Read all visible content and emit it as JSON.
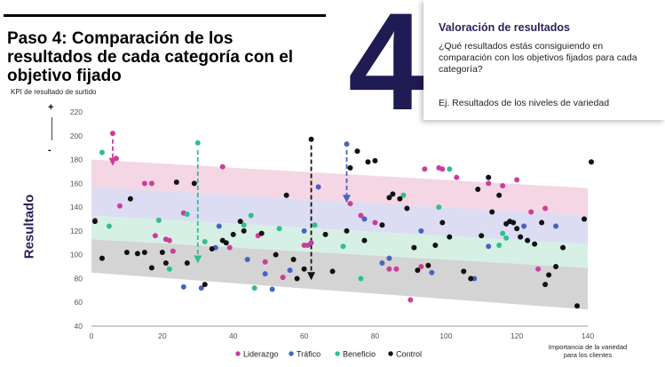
{
  "header": {
    "title_lines": [
      "Paso 4: Comparación de los",
      "resultados de cada categoría con el",
      "objetivo fijado"
    ],
    "step_number": "4"
  },
  "info_box": {
    "title": "Valoración de resultados",
    "question": "¿Qué resultados estás consiguiendo en comparación con los objetivos fijados para cada categoría?",
    "example": "Ej. Resultados de los niveles de variedad"
  },
  "axis_hints": {
    "kpi_label": "KPI de resultado de surtido",
    "plus": "+",
    "minus": "-",
    "y_title": "Resultado",
    "x_title": "Importancia de la variedad para los clientes"
  },
  "colors": {
    "Liderazgo": "#cc3d9b",
    "Tráfico": "#4763c4",
    "Beneficio": "#2fbf8c",
    "Control": "#111111",
    "band_liderazgo": "#f5d6e4",
    "band_trafico": "#dcdcf2",
    "band_beneficio": "#d6f0e6",
    "band_control": "#d4d4d4",
    "title_dark": "#1f1c54"
  },
  "chart_data": {
    "type": "scatter",
    "xlim": [
      0,
      140
    ],
    "ylim": [
      40,
      220
    ],
    "xticks": [
      0,
      20,
      40,
      60,
      80,
      100,
      120,
      140
    ],
    "yticks": [
      40,
      60,
      80,
      100,
      120,
      140,
      160,
      180,
      200,
      220
    ],
    "grid": false,
    "legend_position": "bottom",
    "legend": [
      "Liderazgo",
      "Tráfico",
      "Beneficio",
      "Control"
    ],
    "bands": [
      {
        "name": "Liderazgo",
        "left": [
          157,
          180
        ],
        "right": [
          133,
          156
        ]
      },
      {
        "name": "Tráfico",
        "left": [
          133,
          157
        ],
        "right": [
          109,
          133
        ]
      },
      {
        "name": "Beneficio",
        "left": [
          113,
          133
        ],
        "right": [
          89,
          109
        ]
      },
      {
        "name": "Control",
        "left": [
          85,
          113
        ],
        "right": [
          54,
          89
        ]
      }
    ],
    "arrows": [
      {
        "series": "Liderazgo",
        "x": 6,
        "y_from": 197,
        "y_to": 176
      },
      {
        "series": "Beneficio",
        "x": 30,
        "y_from": 188,
        "y_to": 94
      },
      {
        "series": "Control",
        "x": 62,
        "y_from": 192,
        "y_to": 80
      },
      {
        "series": "Tráfico",
        "x": 72,
        "y_from": 188,
        "y_to": 145
      }
    ],
    "series": [
      {
        "name": "Liderazgo",
        "points": [
          [
            1,
            129
          ],
          [
            6,
            202
          ],
          [
            7,
            181
          ],
          [
            8,
            141
          ],
          [
            15,
            160
          ],
          [
            17,
            160
          ],
          [
            18,
            116
          ],
          [
            21,
            113
          ],
          [
            22,
            112
          ],
          [
            23,
            103
          ],
          [
            26,
            135
          ],
          [
            37,
            174
          ],
          [
            39,
            106
          ],
          [
            47,
            116
          ],
          [
            49,
            94
          ],
          [
            54,
            81
          ],
          [
            60,
            108
          ],
          [
            61,
            108
          ],
          [
            62,
            110
          ],
          [
            73,
            143
          ],
          [
            76,
            133
          ],
          [
            80,
            127
          ],
          [
            84,
            88
          ],
          [
            86,
            88
          ],
          [
            90,
            62
          ],
          [
            93,
            90
          ],
          [
            94,
            172
          ],
          [
            98,
            173
          ],
          [
            99,
            172
          ],
          [
            103,
            165
          ],
          [
            112,
            160
          ],
          [
            116,
            158
          ],
          [
            120,
            163
          ],
          [
            124,
            136
          ],
          [
            126,
            88
          ],
          [
            128,
            139
          ]
        ]
      },
      {
        "name": "Tráfico",
        "points": [
          [
            26,
            73
          ],
          [
            31,
            72
          ],
          [
            35,
            106
          ],
          [
            36,
            124
          ],
          [
            44,
            96
          ],
          [
            49,
            84
          ],
          [
            51,
            71
          ],
          [
            56,
            87
          ],
          [
            60,
            120
          ],
          [
            64,
            157
          ],
          [
            72,
            193
          ],
          [
            77,
            130
          ],
          [
            82,
            93
          ],
          [
            84,
            97
          ],
          [
            93,
            120
          ],
          [
            96,
            85
          ],
          [
            108,
            80
          ],
          [
            112,
            107
          ],
          [
            122,
            124
          ],
          [
            131,
            124
          ]
        ]
      },
      {
        "name": "Beneficio",
        "points": [
          [
            3,
            186
          ],
          [
            5,
            124
          ],
          [
            19,
            129
          ],
          [
            22,
            88
          ],
          [
            27,
            134
          ],
          [
            30,
            194
          ],
          [
            32,
            111
          ],
          [
            43,
            125
          ],
          [
            45,
            133
          ],
          [
            46,
            72
          ],
          [
            53,
            122
          ],
          [
            63,
            125
          ],
          [
            71,
            107
          ],
          [
            76,
            80
          ],
          [
            88,
            150
          ],
          [
            98,
            140
          ],
          [
            101,
            172
          ],
          [
            105,
            86
          ],
          [
            115,
            108
          ],
          [
            116,
            118
          ],
          [
            117,
            114
          ]
        ]
      },
      {
        "name": "Control",
        "points": [
          [
            1,
            128
          ],
          [
            3,
            97
          ],
          [
            10,
            102
          ],
          [
            11,
            147
          ],
          [
            13,
            101
          ],
          [
            15,
            102
          ],
          [
            17,
            89
          ],
          [
            20,
            102
          ],
          [
            21,
            93
          ],
          [
            24,
            161
          ],
          [
            27,
            93
          ],
          [
            29,
            160
          ],
          [
            32,
            75
          ],
          [
            34,
            105
          ],
          [
            37,
            112
          ],
          [
            38,
            110
          ],
          [
            40,
            117
          ],
          [
            42,
            128
          ],
          [
            43,
            120
          ],
          [
            48,
            118
          ],
          [
            52,
            100
          ],
          [
            55,
            150
          ],
          [
            57,
            96
          ],
          [
            58,
            80
          ],
          [
            60,
            88
          ],
          [
            62,
            197
          ],
          [
            66,
            117
          ],
          [
            68,
            86
          ],
          [
            72,
            120
          ],
          [
            73,
            173
          ],
          [
            75,
            187
          ],
          [
            77,
            112
          ],
          [
            78,
            178
          ],
          [
            80,
            179
          ],
          [
            82,
            125
          ],
          [
            84,
            148
          ],
          [
            85,
            151
          ],
          [
            87,
            147
          ],
          [
            89,
            139
          ],
          [
            91,
            106
          ],
          [
            92,
            87
          ],
          [
            95,
            91
          ],
          [
            97,
            108
          ],
          [
            99,
            127
          ],
          [
            101,
            115
          ],
          [
            105,
            86
          ],
          [
            107,
            80
          ],
          [
            109,
            155
          ],
          [
            110,
            116
          ],
          [
            112,
            165
          ],
          [
            113,
            136
          ],
          [
            115,
            150
          ],
          [
            117,
            126
          ],
          [
            118,
            128
          ],
          [
            119,
            127
          ],
          [
            120,
            122
          ],
          [
            121,
            115
          ],
          [
            123,
            112
          ],
          [
            125,
            109
          ],
          [
            127,
            127
          ],
          [
            128,
            75
          ],
          [
            129,
            83
          ],
          [
            131,
            90
          ],
          [
            133,
            106
          ],
          [
            137,
            57
          ],
          [
            139,
            130
          ],
          [
            141,
            178
          ]
        ]
      }
    ]
  }
}
